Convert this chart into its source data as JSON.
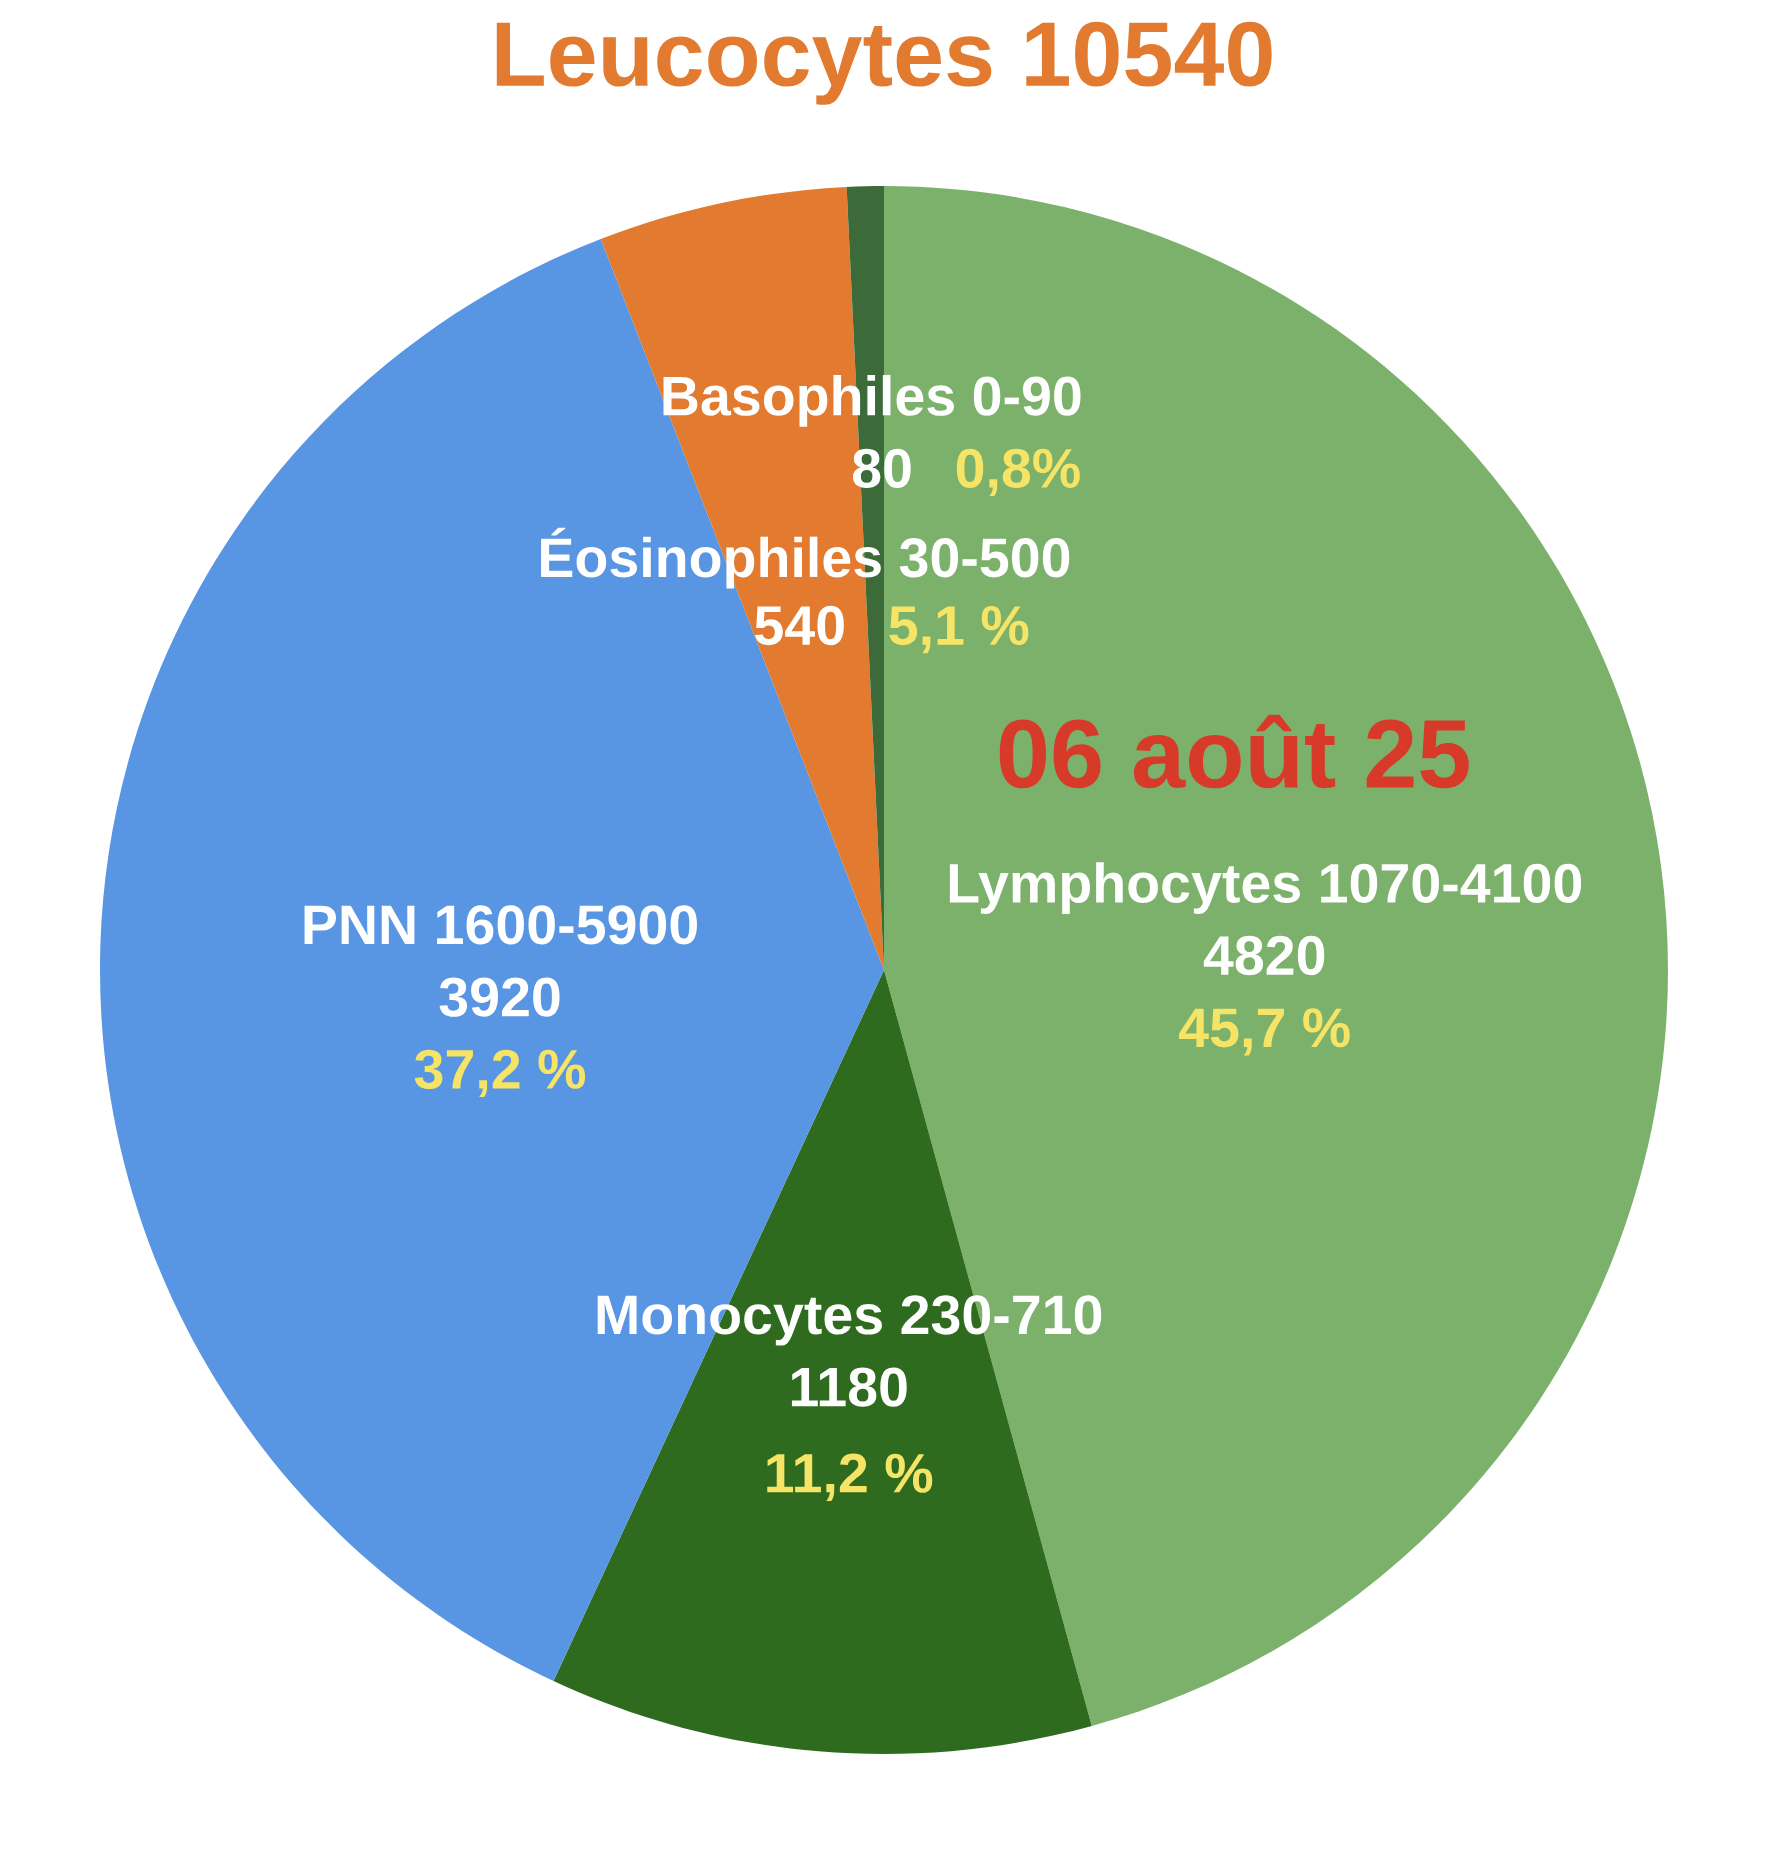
{
  "chart_data": {
    "type": "pie",
    "title": "Leucocytes 10540",
    "categories": [
      "Lymphocytes 1070-4100",
      "Monocytes 230-710",
      "PNN 1600-5900",
      "Éosinophiles 30-500",
      "Basophiles 0-90"
    ],
    "values": [
      4820,
      1180,
      3920,
      540,
      80
    ],
    "colors": [
      "#7cb16b",
      "#2f6b1e",
      "#5895e3",
      "#e27a30",
      "#3c6a39"
    ],
    "data_labels": true,
    "annotations": [
      "06 août 25",
      {
        "text": "45,7 %",
        "x": "Lymphocytes 1070-4100"
      },
      {
        "text": "11,2 %",
        "x": "Monocytes 230-710"
      },
      {
        "text": "37,2 %",
        "x": "PNN 1600-5900"
      },
      {
        "text": "5,1 %",
        "x": "Éosinophiles 30-500"
      },
      {
        "text": "0,8%",
        "x": "Basophiles 0-90"
      }
    ]
  }
}
